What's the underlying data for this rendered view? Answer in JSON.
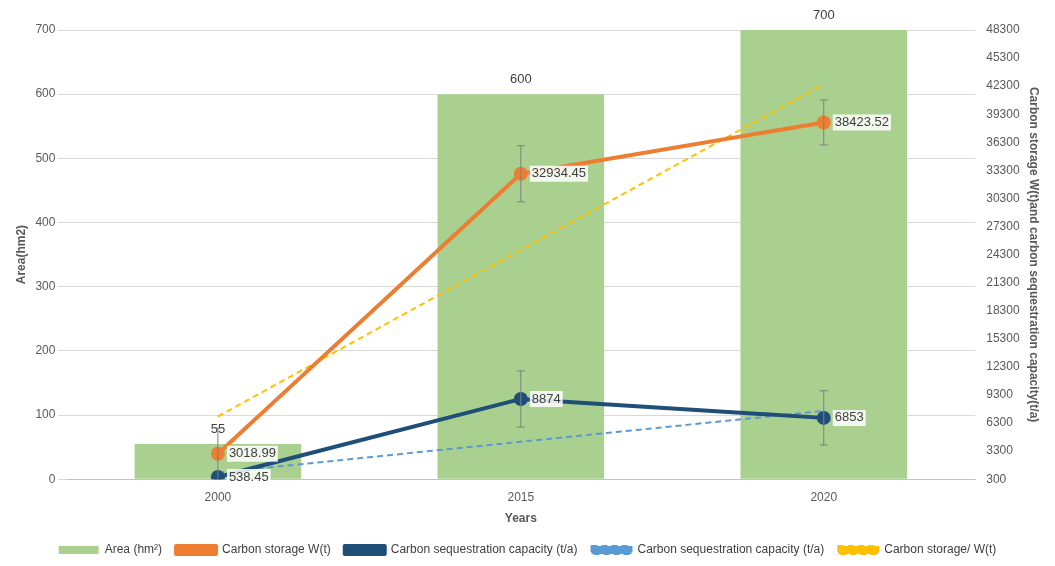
{
  "chart_data": {
    "type": "bar",
    "xlabel": "Years",
    "ylabel": "Area(hm2)",
    "y2label": "Carbon storage W(t)and carbon sequestration capacity(t/a)",
    "categories": [
      "2000",
      "2015",
      "2020"
    ],
    "ylim": [
      0,
      700
    ],
    "yticks": [
      0,
      100,
      200,
      300,
      400,
      500,
      600,
      700
    ],
    "y2lim": [
      300,
      48300
    ],
    "y2ticks": [
      300,
      3300,
      6300,
      9300,
      12300,
      15300,
      18300,
      21300,
      24300,
      27300,
      30300,
      33300,
      36300,
      39300,
      42300,
      45300,
      48300
    ],
    "grid": "y",
    "legend": "bottom",
    "series": [
      {
        "name": "Area (hm²)",
        "color": "#a9d08e",
        "values": [
          55,
          600,
          700
        ],
        "data_labels": true
      },
      {
        "name": "Carbon storage W(t)",
        "type": "line",
        "axis": "y2",
        "color": "#ed7d31",
        "marker": "circle",
        "line_style": "solid",
        "values": [
          3018.99,
          32934.45,
          38423.52
        ],
        "errors": [
          2750,
          3000,
          2400
        ],
        "data_labels": true
      },
      {
        "name": "Carbon sequestration capacity (t/a)",
        "type": "line",
        "axis": "y2",
        "color": "#1f4e79",
        "marker": "circle",
        "line_style": "solid",
        "values": [
          538.45,
          8874,
          6853
        ],
        "errors": [
          null,
          3000,
          2900
        ],
        "data_labels": true
      },
      {
        "name": "Carbon sequestration capacity (t/a)",
        "type": "line",
        "axis": "y2",
        "color": "#5b9bd5",
        "marker": "none",
        "line_style": "dashed",
        "values": [
          1000,
          4300,
          7600
        ]
      },
      {
        "name": "Carbon storage/ W(t)",
        "type": "line",
        "axis": "y2",
        "color": "#ffc000",
        "marker": "none",
        "line_style": "dashed",
        "values": [
          7000,
          24800,
          42500
        ]
      }
    ]
  }
}
